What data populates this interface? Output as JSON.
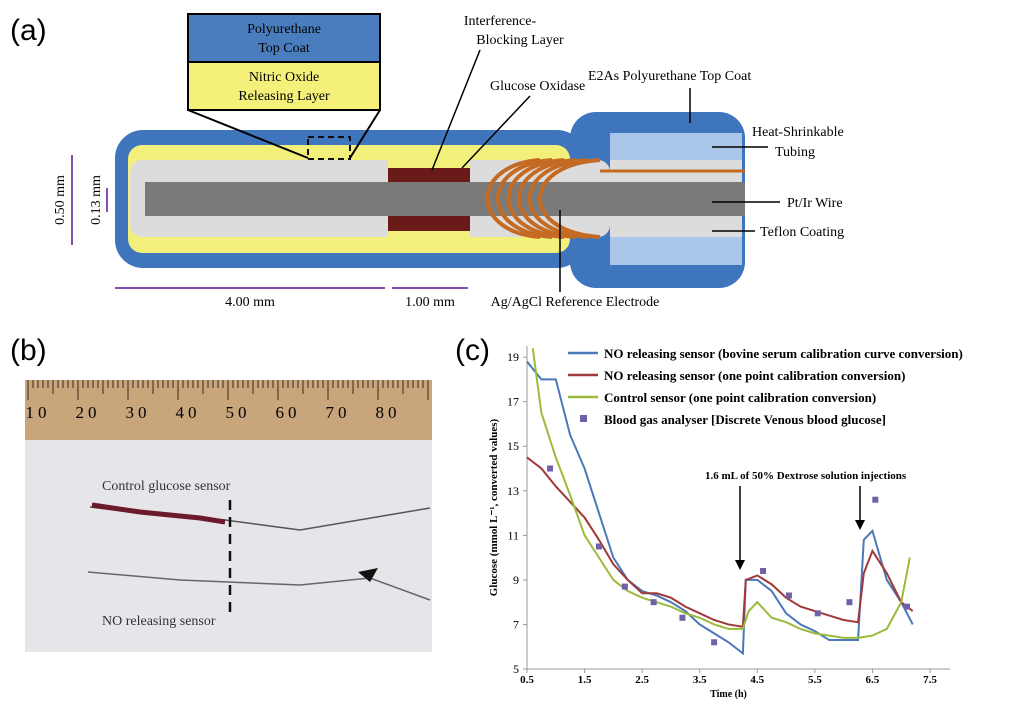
{
  "diagram": {
    "panel": "(a)",
    "top_coat_box": [
      "Polyurethane",
      "Top Coat"
    ],
    "no_layer_box": [
      "Nitric Oxide",
      "Releasing Layer"
    ],
    "interference": [
      "Interference-",
      "Blocking Layer"
    ],
    "glucose_oxidase": "Glucose Oxidase",
    "e2as": "E2As Polyurethane Top Coat",
    "heat_shrink": [
      "Heat-Shrinkable",
      "Tubing"
    ],
    "wire": "Pt/Ir Wire",
    "teflon": "Teflon Coating",
    "reference": "Ag/AgCl Reference Electrode",
    "dim_outer": "0.50 mm",
    "dim_inner": "0.13 mm",
    "dim_length": "4.00 mm",
    "dim_enzyme": "1.00 mm"
  },
  "photo": {
    "panel": "(b)",
    "ruler_labels": [
      "10",
      "20",
      "30",
      "40",
      "50",
      "60",
      "70",
      "80"
    ],
    "control_label": "Control glucose sensor",
    "no_label": "NO releasing sensor"
  },
  "chart_data": {
    "type": "line",
    "panel": "(c)",
    "x_label": "Time (h)",
    "y_label": "Glucose (mmol L⁻¹, converted values)",
    "annotation": "1.6 mL of 50% Dextrose solution injections",
    "xlim": [
      0.5,
      7.5
    ],
    "xticks": [
      0.5,
      1.5,
      2.5,
      3.5,
      4.5,
      5.5,
      6.5,
      7.5
    ],
    "ylim": [
      5,
      19.5
    ],
    "yticks": [
      5,
      7,
      9,
      11,
      13,
      15,
      17,
      19
    ],
    "series": [
      {
        "name": "NO releasing sensor (bovine serum calibration curve conversion)",
        "color": "#4a78b8",
        "x": [
          0.5,
          0.75,
          1.0,
          1.25,
          1.5,
          1.75,
          2.0,
          2.25,
          2.5,
          2.75,
          3.0,
          3.25,
          3.5,
          3.75,
          4.0,
          4.25,
          4.3,
          4.5,
          4.75,
          5.0,
          5.25,
          5.5,
          5.75,
          6.0,
          6.25,
          6.35,
          6.5,
          6.75,
          7.0,
          7.2
        ],
        "values": [
          18.8,
          18.0,
          18.0,
          15.5,
          14.0,
          12.0,
          10.0,
          9.0,
          8.5,
          8.3,
          8.0,
          7.6,
          7.0,
          6.6,
          6.2,
          5.7,
          9.0,
          9.0,
          8.5,
          7.5,
          7.0,
          6.7,
          6.3,
          6.3,
          6.3,
          10.8,
          11.2,
          9.0,
          8.0,
          7.0
        ]
      },
      {
        "name": "NO releasing sensor (one point calibration conversion)",
        "color": "#a0393a",
        "x": [
          0.5,
          0.75,
          1.0,
          1.25,
          1.5,
          1.75,
          2.0,
          2.25,
          2.5,
          2.75,
          3.0,
          3.25,
          3.5,
          3.75,
          4.0,
          4.25,
          4.3,
          4.5,
          4.75,
          5.0,
          5.25,
          5.5,
          5.75,
          6.0,
          6.25,
          6.35,
          6.5,
          6.75,
          7.0,
          7.2
        ],
        "values": [
          14.5,
          14.0,
          13.2,
          12.5,
          11.8,
          10.8,
          9.7,
          9.0,
          8.4,
          8.4,
          8.2,
          7.8,
          7.5,
          7.2,
          7.0,
          6.9,
          9.0,
          9.2,
          8.8,
          8.2,
          7.8,
          7.6,
          7.4,
          7.2,
          7.1,
          9.3,
          10.3,
          9.3,
          8.0,
          7.6
        ]
      },
      {
        "name": "Control sensor (one point calibration conversion)",
        "color": "#9bbb3b",
        "x": [
          0.6,
          0.75,
          1.0,
          1.25,
          1.5,
          1.75,
          2.0,
          2.25,
          2.5,
          2.75,
          3.0,
          3.25,
          3.5,
          3.75,
          4.0,
          4.25,
          4.35,
          4.5,
          4.75,
          5.0,
          5.25,
          5.5,
          5.75,
          6.0,
          6.25,
          6.5,
          6.75,
          7.0,
          7.15
        ],
        "values": [
          19.4,
          16.5,
          14.5,
          12.8,
          11.0,
          10.0,
          9.0,
          8.5,
          8.2,
          8.0,
          7.8,
          7.5,
          7.3,
          7.0,
          6.8,
          6.8,
          7.6,
          8.0,
          7.3,
          7.1,
          6.8,
          6.6,
          6.5,
          6.4,
          6.4,
          6.5,
          6.8,
          8.0,
          10.0
        ]
      },
      {
        "name": "Blood gas analyser [Discrete Venous blood glucose]",
        "color": "#7060a8",
        "type": "scatter",
        "x": [
          0.9,
          1.75,
          2.2,
          2.7,
          3.2,
          3.75,
          4.6,
          5.05,
          5.55,
          6.1,
          6.55,
          7.1
        ],
        "values": [
          14.0,
          10.5,
          8.7,
          8.0,
          7.3,
          6.2,
          9.4,
          8.3,
          7.5,
          8.0,
          12.6,
          7.8
        ]
      }
    ]
  }
}
